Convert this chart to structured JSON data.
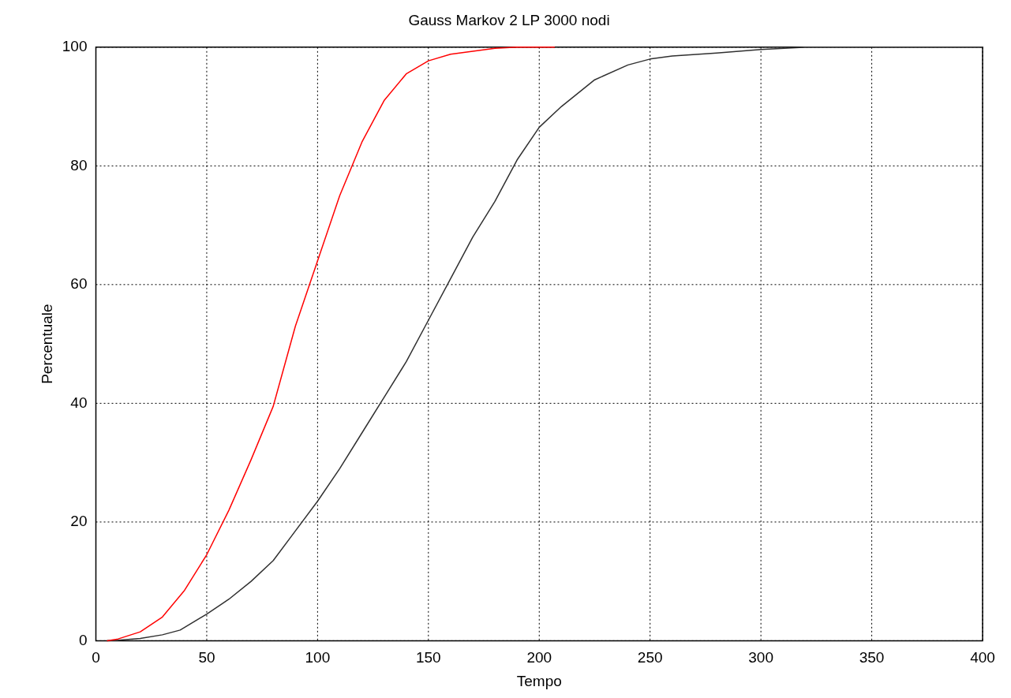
{
  "chart_data": {
    "type": "line",
    "title": "Gauss Markov 2 LP 3000 nodi",
    "xlabel": "Tempo",
    "ylabel": "Percentuale",
    "xlim": [
      0,
      400
    ],
    "xticks": [
      0,
      50,
      100,
      150,
      200,
      250,
      300,
      350,
      400
    ],
    "ylim": [
      0,
      100
    ],
    "yticks": [
      0,
      20,
      40,
      60,
      80,
      100
    ],
    "grid": true,
    "legend": false,
    "marker": "none",
    "line_style": "solid",
    "series": [
      {
        "color": "#ff0000",
        "x": [
          5,
          10,
          20,
          30,
          40,
          50,
          60,
          70,
          80,
          90,
          100,
          110,
          120,
          130,
          140,
          150,
          160,
          170,
          180,
          190,
          207
        ],
        "values": [
          0,
          0.3,
          1.5,
          4,
          8.5,
          14.5,
          22,
          30.5,
          39.5,
          53,
          64,
          75,
          84,
          91,
          95.5,
          97.7,
          98.8,
          99.3,
          99.8,
          100,
          100
        ]
      },
      {
        "color": "#303030",
        "x": [
          5,
          10,
          20,
          30,
          38,
          50,
          60,
          70,
          80,
          90,
          100,
          110,
          120,
          130,
          140,
          150,
          160,
          170,
          180,
          190,
          200,
          210,
          225,
          240,
          250,
          260,
          280,
          300,
          320,
          350,
          400
        ],
        "values": [
          0,
          0.1,
          0.4,
          1,
          1.8,
          4.5,
          7,
          10,
          13.5,
          18.5,
          23.5,
          29,
          35,
          41,
          47,
          54,
          61,
          68,
          74,
          81,
          86.5,
          90,
          94.5,
          97,
          98,
          98.5,
          99,
          99.6,
          100,
          100,
          100
        ]
      }
    ]
  }
}
